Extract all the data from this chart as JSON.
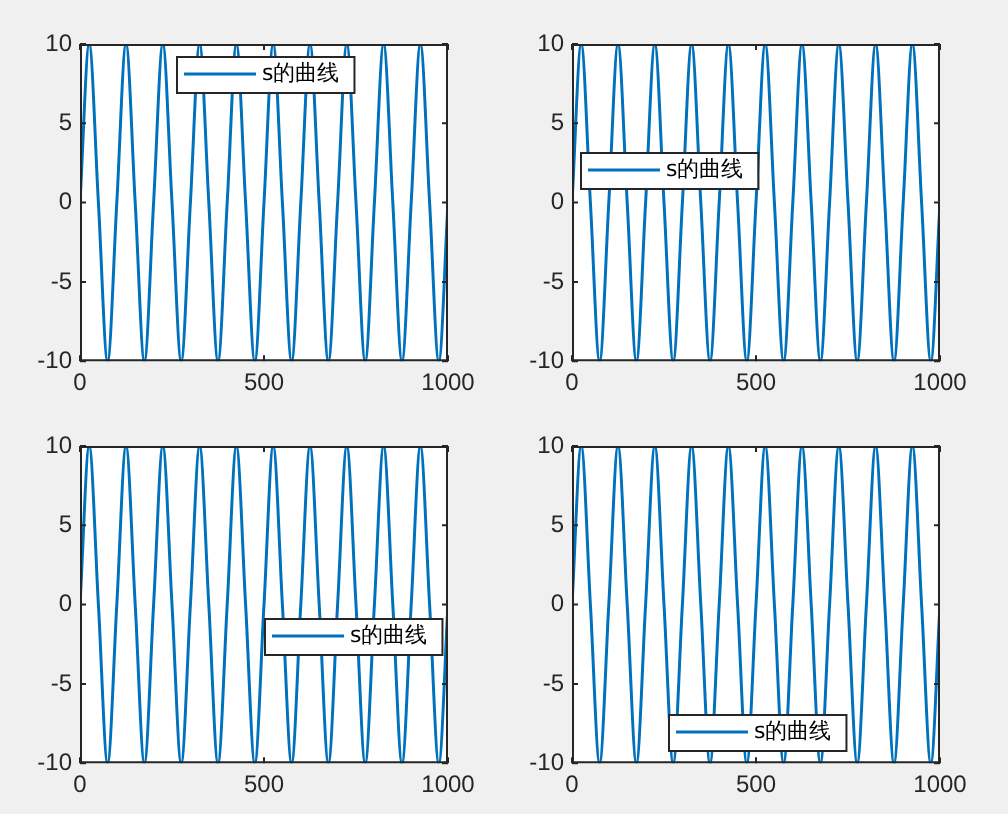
{
  "chart_data": [
    {
      "type": "line",
      "x": [
        0,
        25,
        50,
        75,
        100,
        125,
        150,
        175,
        200,
        225,
        250,
        275,
        300,
        325,
        350,
        375,
        400,
        425,
        450,
        475,
        500,
        525,
        550,
        575,
        600,
        625,
        650,
        675,
        700,
        725,
        750,
        775,
        800,
        825,
        850,
        875,
        900,
        925,
        950,
        975,
        1000
      ],
      "series": [
        {
          "name": "s的曲线",
          "color": "#0072bd",
          "values": [
            0,
            10,
            0,
            -10,
            0,
            10,
            0,
            -10,
            0,
            10,
            0,
            -10,
            0,
            10,
            0,
            -10,
            0,
            10,
            0,
            -10,
            0,
            10,
            0,
            -10,
            0,
            10,
            0,
            -10,
            0,
            10,
            0,
            -10,
            0,
            10,
            0,
            -10,
            0,
            10,
            0,
            -10,
            0
          ]
        }
      ],
      "xlim": [
        0,
        1000
      ],
      "ylim": [
        -10,
        10
      ],
      "xticks": [
        0,
        500,
        1000
      ],
      "yticks": [
        -10,
        -5,
        0,
        5,
        10
      ],
      "legend": "top",
      "marker": "none",
      "grid": false
    },
    {
      "type": "line",
      "x": [
        0,
        25,
        50,
        75,
        100,
        125,
        150,
        175,
        200,
        225,
        250,
        275,
        300,
        325,
        350,
        375,
        400,
        425,
        450,
        475,
        500,
        525,
        550,
        575,
        600,
        625,
        650,
        675,
        700,
        725,
        750,
        775,
        800,
        825,
        850,
        875,
        900,
        925,
        950,
        975,
        1000
      ],
      "series": [
        {
          "name": "s的曲线",
          "color": "#0072bd",
          "values": [
            0,
            10,
            0,
            -10,
            0,
            10,
            0,
            -10,
            0,
            10,
            0,
            -10,
            0,
            10,
            0,
            -10,
            0,
            10,
            0,
            -10,
            0,
            10,
            0,
            -10,
            0,
            10,
            0,
            -10,
            0,
            10,
            0,
            -10,
            0,
            10,
            0,
            -10,
            0,
            10,
            0,
            -10,
            0
          ]
        }
      ],
      "xlim": [
        0,
        1000
      ],
      "ylim": [
        -10,
        10
      ],
      "xticks": [
        0,
        500,
        1000
      ],
      "yticks": [
        -10,
        -5,
        0,
        5,
        10
      ],
      "legend": "left",
      "marker": "none",
      "grid": false
    },
    {
      "type": "line",
      "x": [
        0,
        25,
        50,
        75,
        100,
        125,
        150,
        175,
        200,
        225,
        250,
        275,
        300,
        325,
        350,
        375,
        400,
        425,
        450,
        475,
        500,
        525,
        550,
        575,
        600,
        625,
        650,
        675,
        700,
        725,
        750,
        775,
        800,
        825,
        850,
        875,
        900,
        925,
        950,
        975,
        1000
      ],
      "series": [
        {
          "name": "s的曲线",
          "color": "#0072bd",
          "values": [
            0,
            10,
            0,
            -10,
            0,
            10,
            0,
            -10,
            0,
            10,
            0,
            -10,
            0,
            10,
            0,
            -10,
            0,
            10,
            0,
            -10,
            0,
            10,
            0,
            -10,
            0,
            10,
            0,
            -10,
            0,
            10,
            0,
            -10,
            0,
            10,
            0,
            -10,
            0,
            10,
            0,
            -10,
            0
          ]
        }
      ],
      "xlim": [
        0,
        1000
      ],
      "ylim": [
        -10,
        10
      ],
      "xticks": [
        0,
        500,
        1000
      ],
      "yticks": [
        -10,
        -5,
        0,
        5,
        10
      ],
      "legend": "right",
      "marker": "none",
      "grid": false
    },
    {
      "type": "line",
      "x": [
        0,
        25,
        50,
        75,
        100,
        125,
        150,
        175,
        200,
        225,
        250,
        275,
        300,
        325,
        350,
        375,
        400,
        425,
        450,
        475,
        500,
        525,
        550,
        575,
        600,
        625,
        650,
        675,
        700,
        725,
        750,
        775,
        800,
        825,
        850,
        875,
        900,
        925,
        950,
        975,
        1000
      ],
      "series": [
        {
          "name": "s的曲线",
          "color": "#0072bd",
          "values": [
            0,
            10,
            0,
            -10,
            0,
            10,
            0,
            -10,
            0,
            10,
            0,
            -10,
            0,
            10,
            0,
            -10,
            0,
            10,
            0,
            -10,
            0,
            10,
            0,
            -10,
            0,
            10,
            0,
            -10,
            0,
            10,
            0,
            -10,
            0,
            10,
            0,
            -10,
            0,
            10,
            0,
            -10,
            0
          ]
        }
      ],
      "xlim": [
        0,
        1000
      ],
      "ylim": [
        -10,
        10
      ],
      "xticks": [
        0,
        500,
        1000
      ],
      "yticks": [
        -10,
        -5,
        0,
        5,
        10
      ],
      "legend": "bottom",
      "marker": "none",
      "grid": false
    }
  ]
}
